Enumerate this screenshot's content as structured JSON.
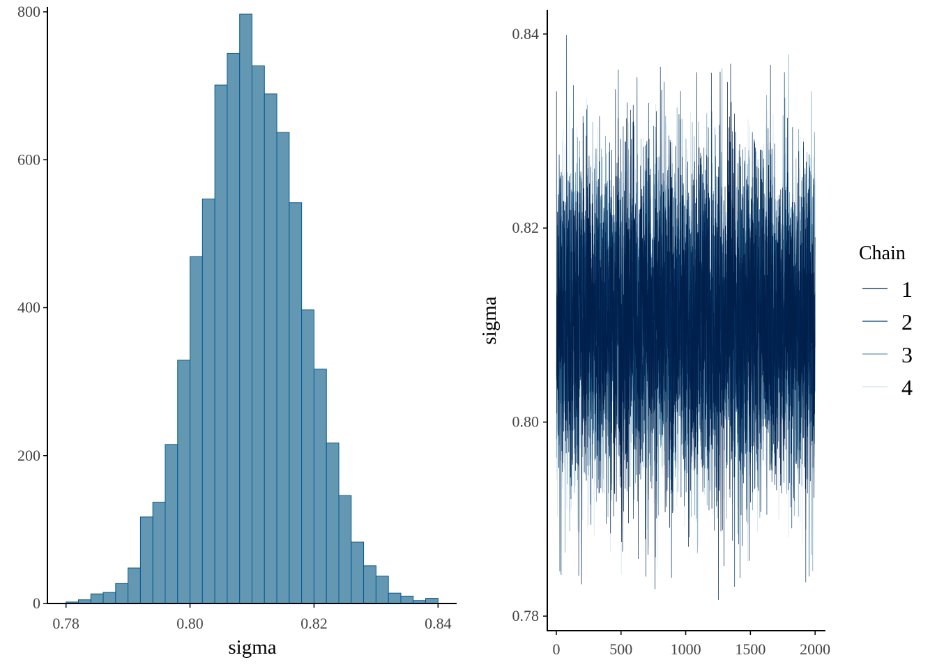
{
  "chart_data": [
    {
      "type": "bar",
      "subtype": "histogram",
      "title": "",
      "xlabel": "sigma",
      "ylabel": "",
      "xlim": [
        0.777,
        0.843
      ],
      "ylim": [
        0,
        800
      ],
      "bin_width": 0.002,
      "bin_centers": [
        0.781,
        0.783,
        0.785,
        0.787,
        0.789,
        0.791,
        0.793,
        0.795,
        0.797,
        0.799,
        0.801,
        0.803,
        0.805,
        0.807,
        0.809,
        0.811,
        0.813,
        0.815,
        0.817,
        0.819,
        0.821,
        0.823,
        0.825,
        0.827,
        0.829,
        0.831,
        0.833,
        0.835,
        0.837,
        0.839,
        0.841
      ],
      "values": [
        2,
        5,
        13,
        15,
        27,
        48,
        117,
        137,
        215,
        329,
        469,
        547,
        701,
        744,
        797,
        727,
        689,
        637,
        542,
        397,
        317,
        217,
        146,
        83,
        51,
        37,
        14,
        10,
        4,
        7,
        0
      ],
      "xticks": [
        "0.78",
        "0.80",
        "0.82",
        "0.84"
      ],
      "yticks": [
        "0",
        "200",
        "400",
        "600",
        "800"
      ],
      "fill_color": "#6497b1",
      "edge_color": "#005b96",
      "grid": false
    },
    {
      "type": "line",
      "subtype": "trace",
      "title": "",
      "xlabel": "",
      "ylabel": "sigma",
      "xlim": [
        -70,
        2080
      ],
      "ylim": [
        0.7785,
        0.8425
      ],
      "xticks": [
        "0",
        "500",
        "1000",
        "1500",
        "2000"
      ],
      "yticks": [
        "0.78",
        "0.80",
        "0.82",
        "0.84"
      ],
      "iterations": 2000,
      "legend_title": "Chain",
      "legend_position": "right",
      "grid": false,
      "series": [
        {
          "name": "1",
          "color": "#011f4b",
          "mean": 0.8105,
          "sd": 0.0085,
          "min": 0.7815,
          "max": 0.8395
        },
        {
          "name": "2",
          "color": "#03396c",
          "mean": 0.8105,
          "sd": 0.0085,
          "min": 0.7822,
          "max": 0.84
        },
        {
          "name": "3",
          "color": "#6497b1",
          "mean": 0.8105,
          "sd": 0.0085,
          "min": 0.7835,
          "max": 0.84
        },
        {
          "name": "4",
          "color": "#d1e1ec",
          "mean": 0.8105,
          "sd": 0.0085,
          "min": 0.783,
          "max": 0.84
        }
      ]
    }
  ]
}
